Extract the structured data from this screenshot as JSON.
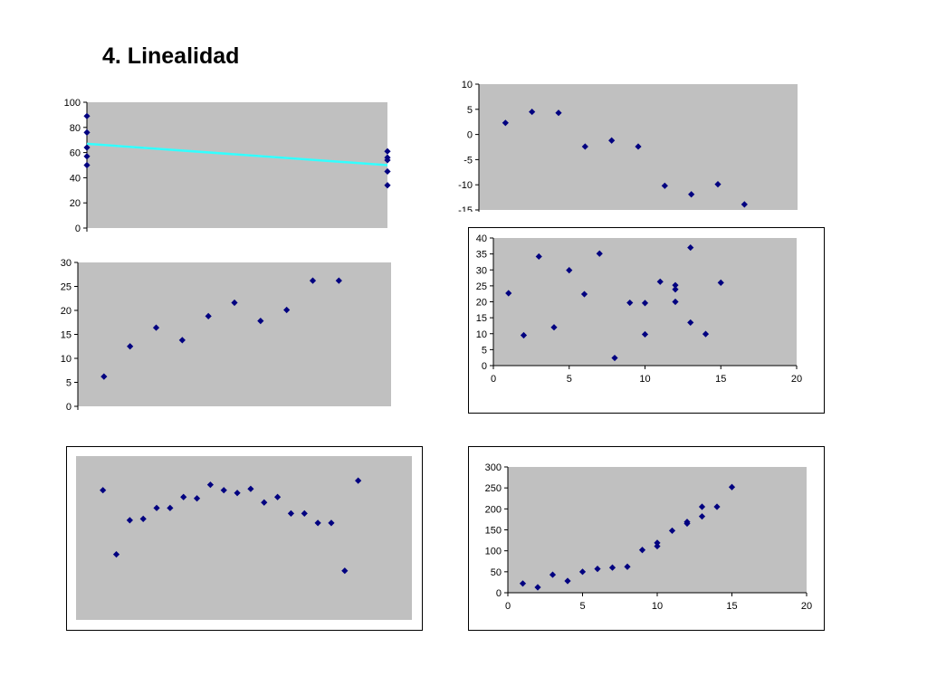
{
  "slide": {
    "title": "4. Linealidad"
  },
  "colors": {
    "plot_bg": "#c0c0c0",
    "marker": "#000080",
    "trend_line": "#33ffff",
    "axis": "#000000"
  },
  "chart_data": [
    {
      "type": "scatter",
      "title": "",
      "xlabel": "",
      "ylabel": "",
      "xlim": [
        0,
        1
      ],
      "ylim": [
        0,
        100
      ],
      "yticks": [
        0,
        20,
        40,
        60,
        80,
        100
      ],
      "show_x_ticks": false,
      "trend_line": {
        "y_start": 67,
        "y_end": 50
      },
      "series": [
        {
          "points": [
            [
              0,
              89
            ],
            [
              0,
              76
            ],
            [
              0,
              64
            ],
            [
              0,
              57
            ],
            [
              0,
              50
            ],
            [
              1,
              61
            ],
            [
              1,
              56
            ],
            [
              1,
              54
            ],
            [
              1,
              45
            ],
            [
              1,
              34
            ]
          ]
        }
      ]
    },
    {
      "type": "scatter",
      "title": "",
      "xlabel": "",
      "ylabel": "",
      "xlim": [
        0,
        12
      ],
      "ylim": [
        -15,
        10
      ],
      "yticks": [
        -15,
        -10,
        -5,
        0,
        5,
        10
      ],
      "show_x_ticks": false,
      "series": [
        {
          "points": [
            [
              1,
              2.3
            ],
            [
              2,
              4.5
            ],
            [
              3,
              4.3
            ],
            [
              4,
              -2.4
            ],
            [
              5,
              -1.2
            ],
            [
              6,
              -2.4
            ],
            [
              7,
              -10.2
            ],
            [
              8,
              -11.9
            ],
            [
              9,
              -9.9
            ],
            [
              10,
              -13.9
            ]
          ]
        }
      ]
    },
    {
      "type": "scatter",
      "title": "",
      "xlabel": "",
      "ylabel": "",
      "xlim": [
        0,
        12
      ],
      "ylim": [
        0,
        30
      ],
      "yticks": [
        0,
        5,
        10,
        15,
        20,
        25,
        30
      ],
      "show_x_ticks": false,
      "series": [
        {
          "points": [
            [
              1,
              6.2
            ],
            [
              2,
              12.5
            ],
            [
              3,
              16.4
            ],
            [
              4,
              13.8
            ],
            [
              5,
              18.8
            ],
            [
              6,
              21.6
            ],
            [
              7,
              17.8
            ],
            [
              8,
              20.1
            ],
            [
              9,
              26.2
            ],
            [
              10,
              26.2
            ]
          ]
        }
      ]
    },
    {
      "type": "scatter",
      "title": "",
      "xlabel": "",
      "ylabel": "",
      "xlim": [
        0,
        20
      ],
      "ylim": [
        0,
        40
      ],
      "yticks": [
        0,
        5,
        10,
        15,
        20,
        25,
        30,
        35,
        40
      ],
      "xticks": [
        0,
        5,
        10,
        15,
        20
      ],
      "show_x_ticks": true,
      "series": [
        {
          "points": [
            [
              1,
              22.7
            ],
            [
              2,
              9.5
            ],
            [
              3,
              34.2
            ],
            [
              4,
              12
            ],
            [
              5,
              29.9
            ],
            [
              6,
              22.4
            ],
            [
              7,
              35.1
            ],
            [
              8,
              2.4
            ],
            [
              9,
              19.7
            ],
            [
              10,
              19.6
            ],
            [
              10,
              9.8
            ],
            [
              11,
              26.3
            ],
            [
              12,
              25.2
            ],
            [
              12,
              23.9
            ],
            [
              12,
              20
            ],
            [
              13,
              37
            ],
            [
              13,
              13.5
            ],
            [
              14,
              9.9
            ],
            [
              15,
              26
            ]
          ]
        }
      ]
    },
    {
      "type": "scatter",
      "title": "",
      "xlabel": "",
      "ylabel": "",
      "xlim": [
        0,
        25
      ],
      "ylim": [
        -2,
        10
      ],
      "show_y_axis": false,
      "show_x_ticks": false,
      "series": [
        {
          "points": [
            [
              2,
              7.5
            ],
            [
              3,
              2.8
            ],
            [
              4,
              5.3
            ],
            [
              5,
              5.4
            ],
            [
              6,
              6.2
            ],
            [
              7,
              6.2
            ],
            [
              8,
              7
            ],
            [
              9,
              6.9
            ],
            [
              10,
              7.9
            ],
            [
              11,
              7.5
            ],
            [
              12,
              7.3
            ],
            [
              13,
              7.6
            ],
            [
              14,
              6.6
            ],
            [
              15,
              7
            ],
            [
              16,
              5.8
            ],
            [
              17,
              5.8
            ],
            [
              18,
              5.1
            ],
            [
              19,
              5.1
            ],
            [
              20,
              1.6
            ],
            [
              21,
              8.2
            ]
          ]
        }
      ]
    },
    {
      "type": "scatter",
      "title": "",
      "xlabel": "",
      "ylabel": "",
      "xlim": [
        0,
        20
      ],
      "ylim": [
        0,
        300
      ],
      "yticks": [
        0,
        50,
        100,
        150,
        200,
        250,
        300
      ],
      "xticks": [
        0,
        5,
        10,
        15,
        20
      ],
      "show_x_ticks": true,
      "series": [
        {
          "points": [
            [
              1,
              22
            ],
            [
              2,
              13
            ],
            [
              3,
              43
            ],
            [
              4,
              28
            ],
            [
              5,
              50
            ],
            [
              6,
              57
            ],
            [
              7,
              60
            ],
            [
              8,
              62
            ],
            [
              9,
              102
            ],
            [
              10,
              111
            ],
            [
              10,
              119
            ],
            [
              11,
              148
            ],
            [
              12,
              165
            ],
            [
              12,
              169
            ],
            [
              13,
              182
            ],
            [
              13,
              205
            ],
            [
              14,
              205
            ],
            [
              15,
              252
            ]
          ]
        }
      ]
    }
  ]
}
